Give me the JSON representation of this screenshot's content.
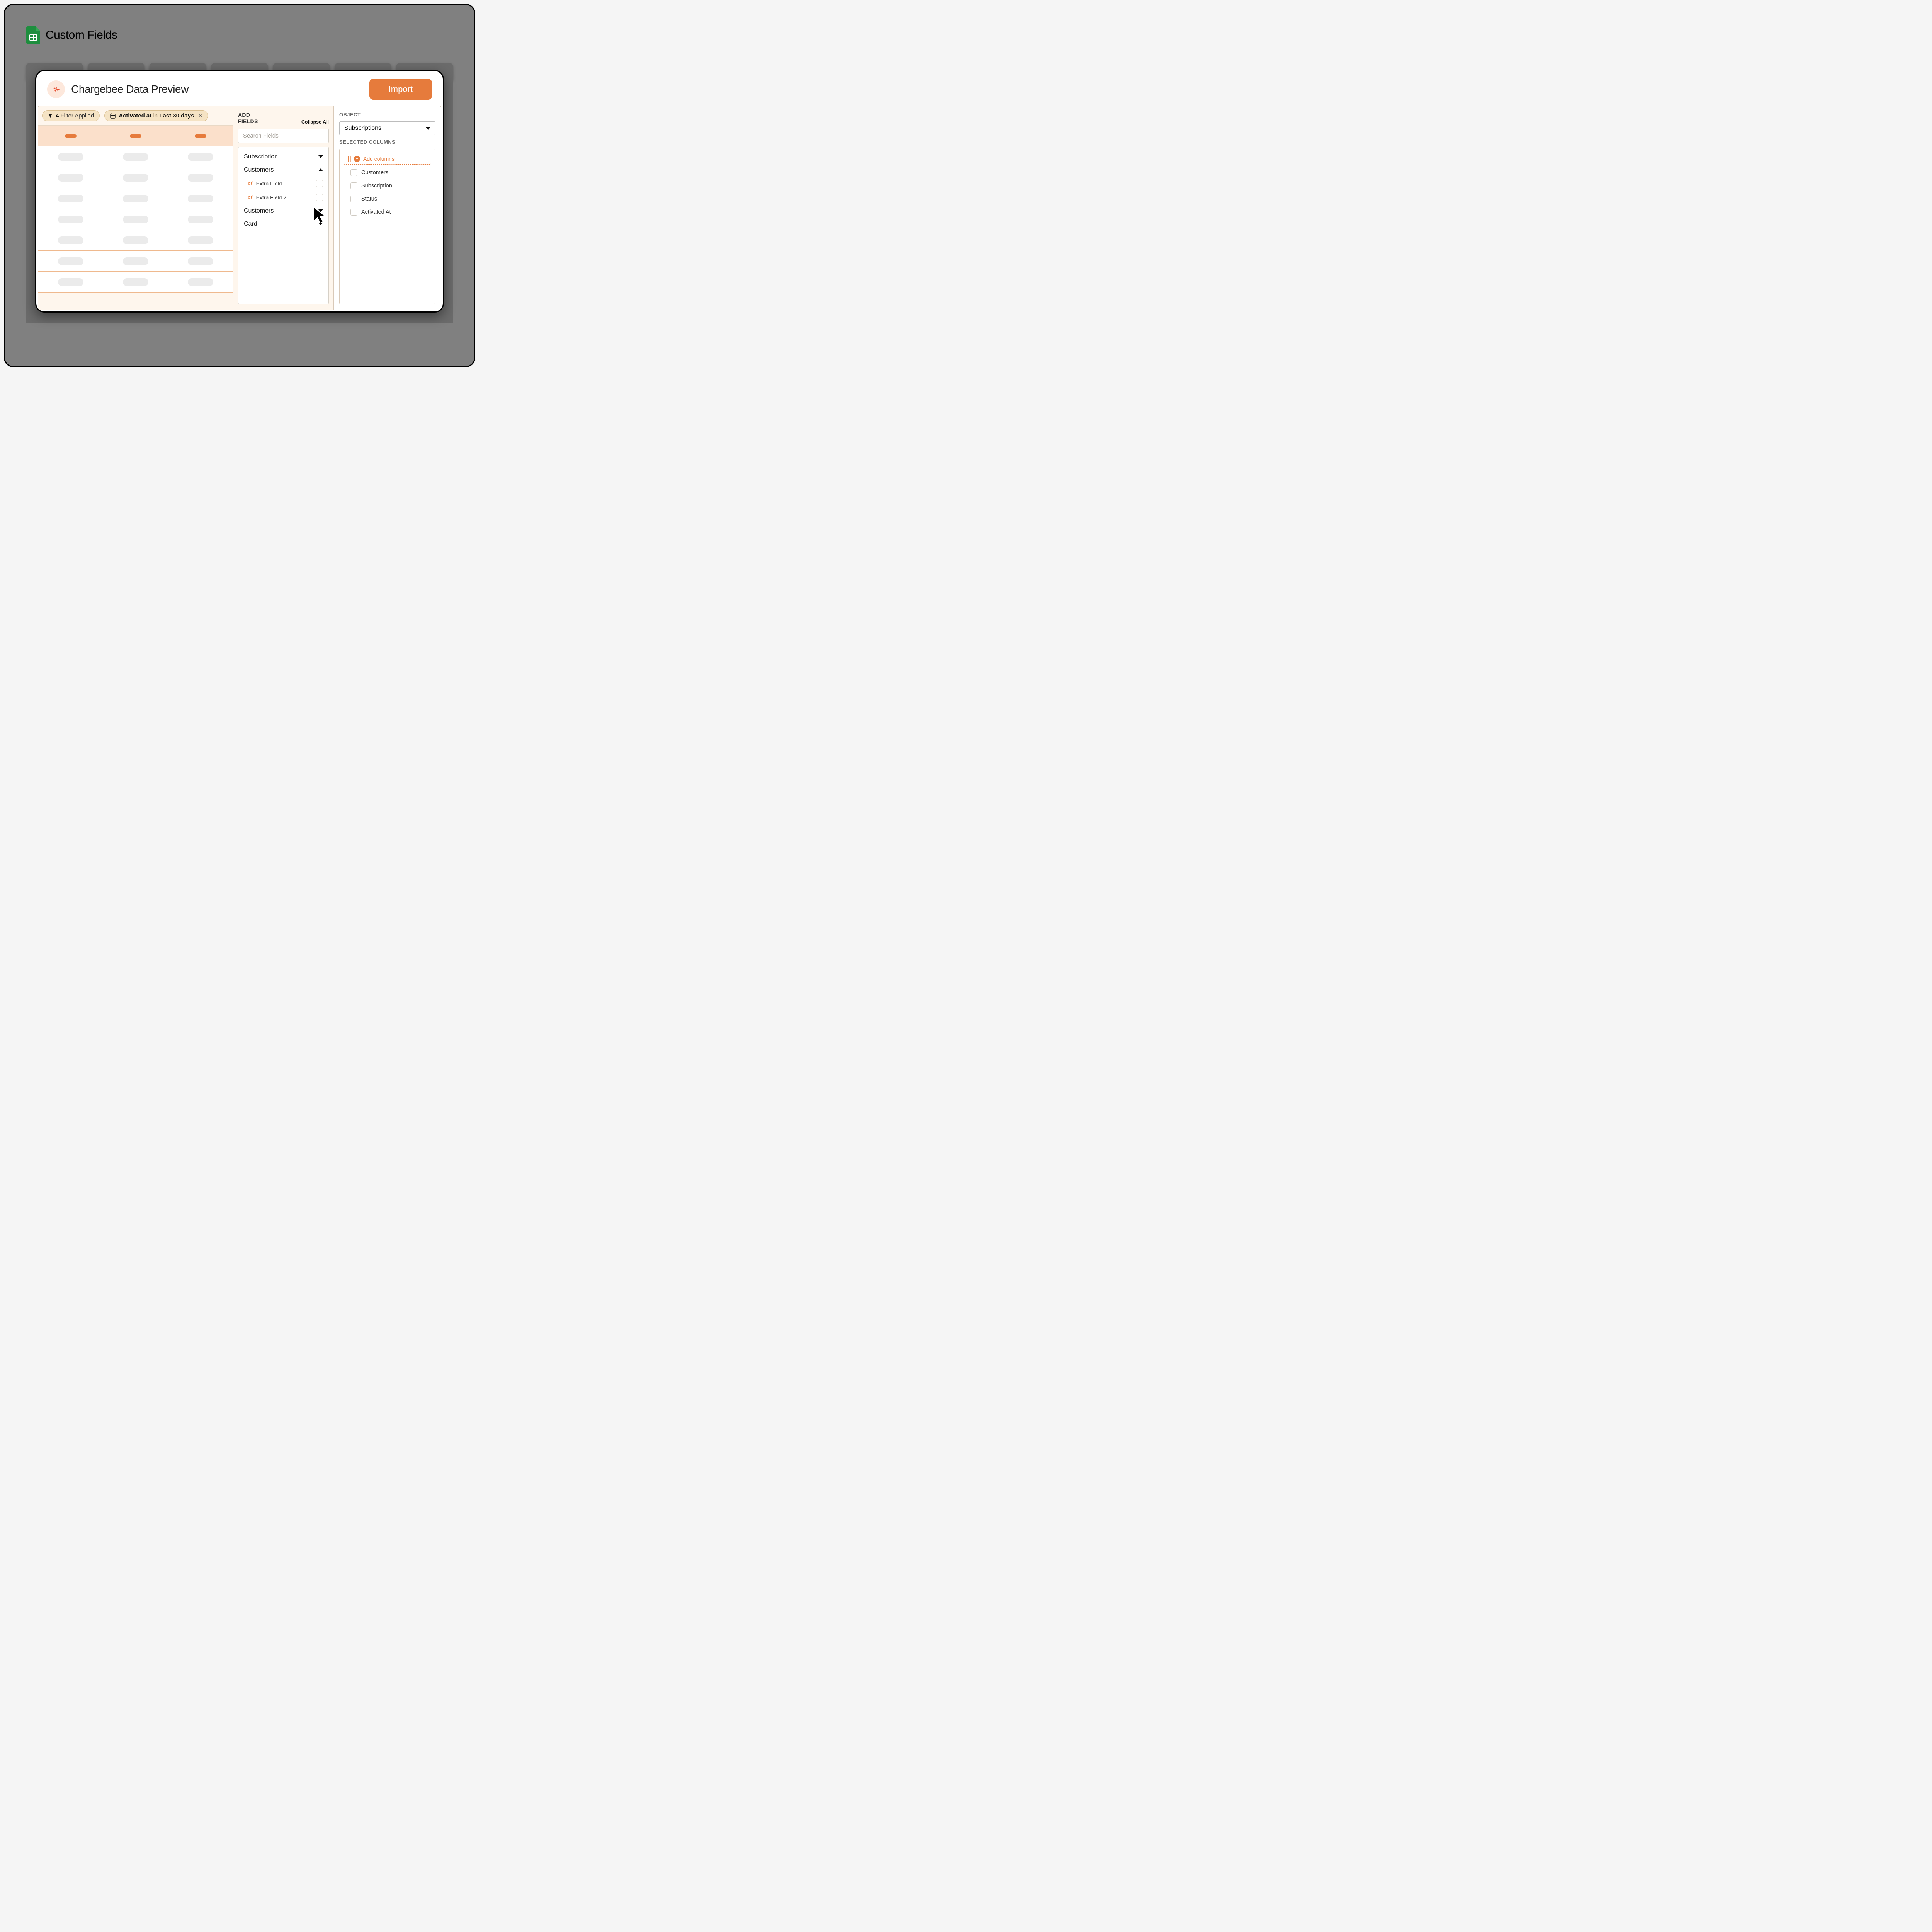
{
  "background": {
    "title": "Custom Fields",
    "sheets_icon_color": "#1e8e3e"
  },
  "modal": {
    "title": "Chargebee Data Preview",
    "brand_color": "#e64b2e",
    "brand_bg": "#fde8dc",
    "import_label": "Import",
    "import_bg": "#e67b3c"
  },
  "filters": {
    "chip1_prefix": "4",
    "chip1_text": "Filter Applied",
    "chip2_field": "Activated at",
    "chip2_op": "in",
    "chip2_value": "Last 30 days"
  },
  "preview": {
    "columns": 3,
    "rows": 7,
    "header_bar_color": "#e67b3c",
    "header_bg": "#fbe0cb",
    "skeleton_color": "#ebebeb",
    "border_color": "#efb98e"
  },
  "add_fields": {
    "heading": "ADD FIELDS",
    "collapse_label": "Collapse All",
    "search_placeholder": "Search Fields",
    "groups": [
      {
        "label": "Subscription",
        "expanded": false
      },
      {
        "label": "Customers",
        "expanded": true,
        "items": [
          {
            "tag": "cf",
            "label": "Extra Field"
          },
          {
            "tag": "cf",
            "label": "Extra Field 2"
          }
        ]
      },
      {
        "label": "Customers",
        "expanded": false
      },
      {
        "label": "Card",
        "expanded": false
      }
    ]
  },
  "right": {
    "object_label": "OBJECT",
    "object_value": "Subscriptions",
    "selected_label": "SELECTED COLUMNS",
    "add_columns_label": "Add columns",
    "columns": [
      "Customers",
      "Subscription",
      "Status",
      "Activated At"
    ]
  },
  "colors": {
    "panel_bg": "#fef6ed",
    "chip_bg": "#f5e3c4",
    "chip_border": "#d9be8f",
    "accent": "#e67b3c"
  }
}
